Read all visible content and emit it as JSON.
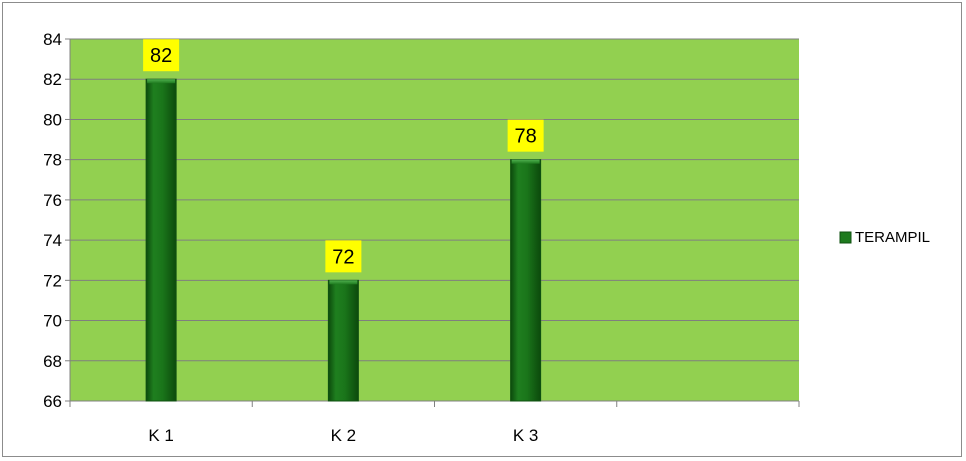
{
  "chart_data": {
    "type": "bar",
    "categories": [
      "K 1",
      "K 2",
      "K 3",
      ""
    ],
    "series": [
      {
        "name": "TERAMPIL",
        "values": [
          82,
          72,
          78,
          null
        ]
      }
    ],
    "data_labels": [
      "82",
      "72",
      "78"
    ],
    "title": "",
    "xlabel": "",
    "ylabel": "",
    "ylim": [
      66,
      84
    ],
    "yticks": [
      66,
      68,
      70,
      72,
      74,
      76,
      78,
      80,
      82,
      84
    ],
    "grid": true,
    "legend_position": "right"
  },
  "colors": {
    "plot_background": "#92D050",
    "bar_fill": "#1E7A1E",
    "bar_dark": "#0F5010",
    "data_label_background": "#FFFF00",
    "gridline": "#7F7F7F"
  }
}
